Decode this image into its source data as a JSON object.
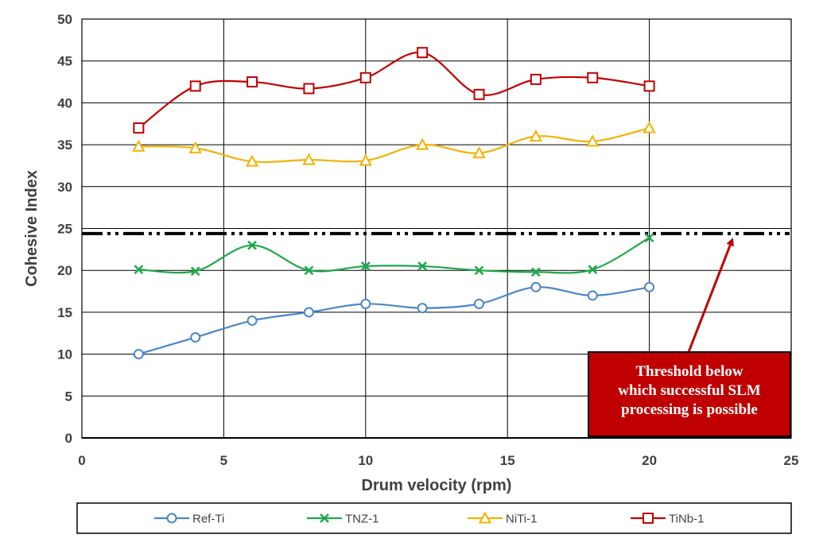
{
  "chart_data": {
    "type": "line",
    "title": "",
    "xlabel": "Drum velocity (rpm)",
    "ylabel": "Cohesive Index",
    "xlim": [
      0,
      25
    ],
    "ylim": [
      0,
      50
    ],
    "xticks": [
      0,
      5,
      10,
      15,
      20,
      25
    ],
    "yticks": [
      0,
      5,
      10,
      15,
      20,
      25,
      30,
      35,
      40,
      45,
      50
    ],
    "grid": true,
    "legend_position": "bottom",
    "x": [
      2,
      4,
      6,
      8,
      10,
      12,
      14,
      16,
      18,
      20
    ],
    "series": [
      {
        "name": "Ref-Ti",
        "color": "#4a86c8",
        "marker": "circle",
        "values": [
          10,
          12,
          14,
          15,
          16,
          15.5,
          16,
          18,
          17,
          18
        ]
      },
      {
        "name": "TNZ-1",
        "color": "#1fa84a",
        "marker": "x",
        "values": [
          20.1,
          19.9,
          23,
          20,
          20.5,
          20.5,
          20,
          19.8,
          20.1,
          23.9
        ]
      },
      {
        "name": "NiTi-1",
        "color": "#f2b300",
        "marker": "triangle",
        "values": [
          34.8,
          34.6,
          33,
          33.2,
          33.1,
          35,
          34,
          36,
          35.4,
          37
        ]
      },
      {
        "name": "TiNb-1",
        "color": "#c00000",
        "marker": "square",
        "values": [
          37,
          42,
          42.5,
          41.7,
          43,
          46,
          41,
          42.8,
          43,
          42
        ]
      }
    ],
    "threshold": {
      "y": 24.4,
      "style": "dash-dot-dot"
    },
    "annotation": {
      "text_lines": [
        "Threshold below",
        "which successful SLM",
        "processing is possible"
      ],
      "arrow_to": {
        "x": 22.9,
        "y": 24.4
      },
      "box_color": "#c00000"
    }
  }
}
